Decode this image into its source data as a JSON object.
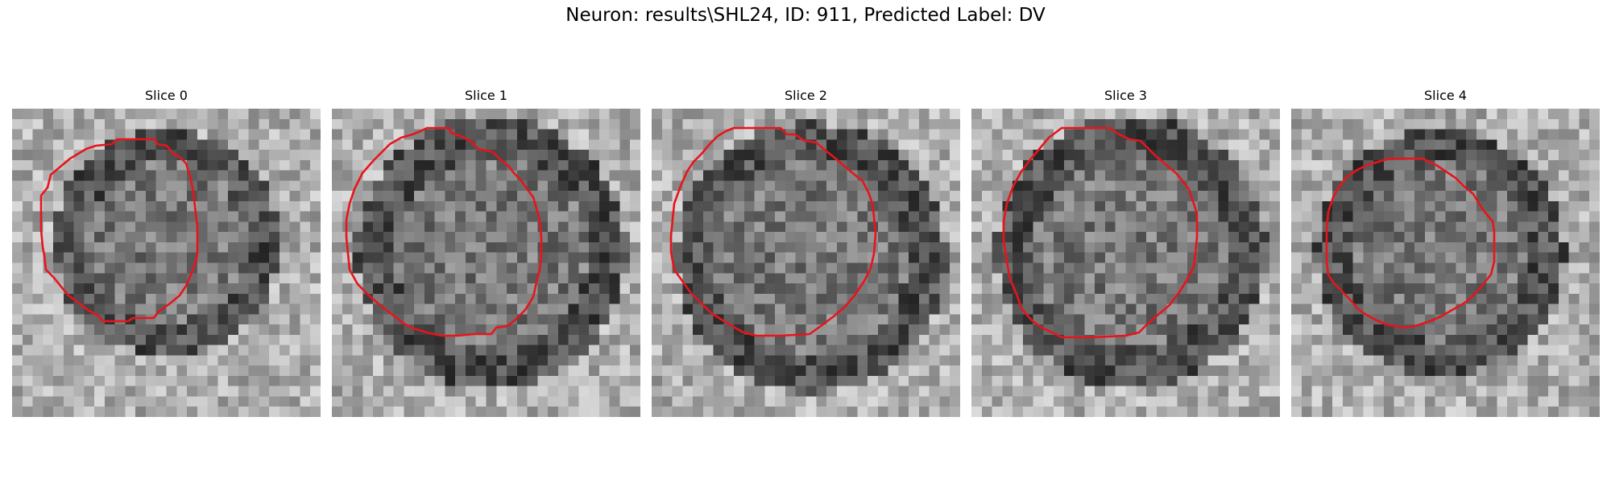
{
  "figure": {
    "title": "Neuron: results\\SHL24, ID: 911, Predicted Label: DV"
  },
  "contour_color": "#e8141b",
  "colormap": "gray",
  "panels": [
    {
      "title": "Slice 0"
    },
    {
      "title": "Slice 1"
    },
    {
      "title": "Slice 2"
    },
    {
      "title": "Slice 3"
    },
    {
      "title": "Slice 4"
    }
  ]
}
